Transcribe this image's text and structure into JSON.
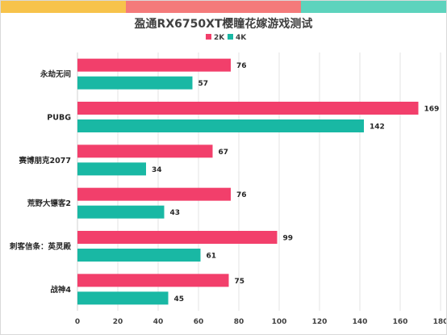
{
  "header_bar": {
    "colors": [
      "#f7c34b",
      "#f47a7a",
      "#5dd3bd"
    ]
  },
  "chart_data": {
    "type": "bar",
    "orientation": "horizontal",
    "title": "盈通RX6750XT樱瞳花嫁游戏测试",
    "categories": [
      "永劫无间",
      "PUBG",
      "赛博朋克2077",
      "荒野大镖客2",
      "刺客信条：英灵殿",
      "战神4"
    ],
    "series": [
      {
        "name": "2K",
        "color": "#f23f6b",
        "values": [
          76,
          169,
          67,
          76,
          99,
          75
        ]
      },
      {
        "name": "4K",
        "color": "#19b8a4",
        "values": [
          57,
          142,
          34,
          43,
          61,
          45
        ]
      }
    ],
    "xlim": [
      0,
      180
    ],
    "x_ticks": [
      0,
      20,
      40,
      60,
      80,
      100,
      120,
      140,
      160,
      180
    ],
    "grid": true,
    "legend_position": "top-center"
  }
}
